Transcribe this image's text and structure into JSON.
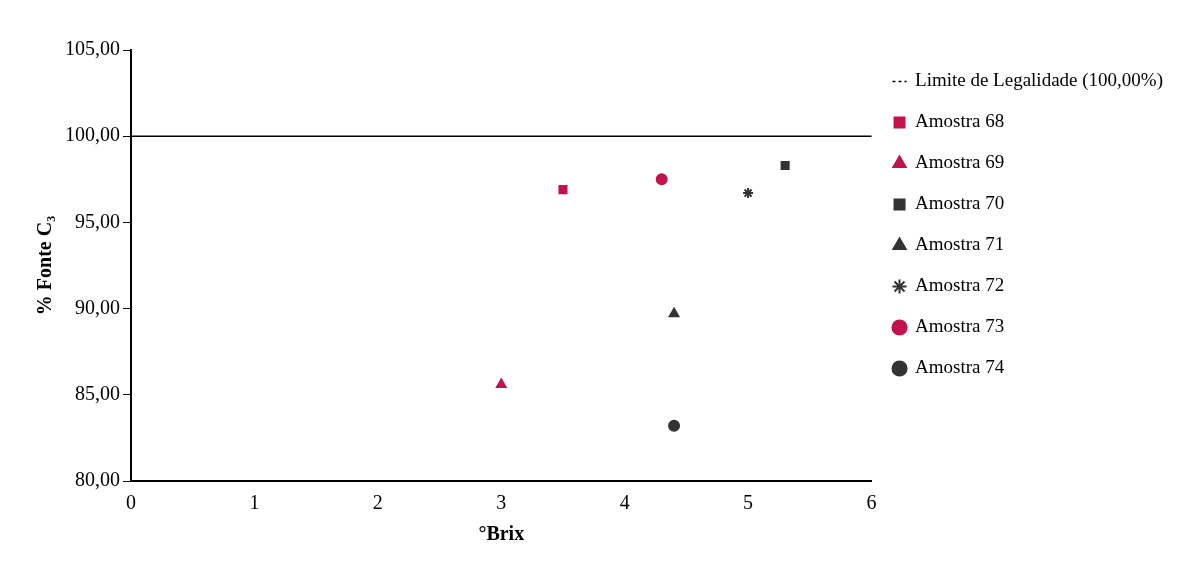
{
  "chart_data": {
    "type": "scatter",
    "xlabel": "°Brix",
    "ylabel": "% Fonte C₃",
    "xlim": [
      0,
      6
    ],
    "xticks": [
      0,
      1,
      2,
      3,
      4,
      5,
      6
    ],
    "ylim": [
      80,
      105
    ],
    "yticks": [
      {
        "value": 80,
        "label": "80,00"
      },
      {
        "value": 85,
        "label": "85,00"
      },
      {
        "value": 90,
        "label": "90,00"
      },
      {
        "value": 95,
        "label": "95,00"
      },
      {
        "value": 100,
        "label": "100,00"
      },
      {
        "value": 105,
        "label": "105,00"
      }
    ],
    "ref_lines": [
      {
        "axis": "y",
        "value": 100,
        "label": "Limite de Legalidade (100,00%)",
        "color": "#000000"
      }
    ],
    "series": [
      {
        "name": "Amostra 68",
        "color": "#c0134f",
        "marker": "square",
        "x": [
          3.5
        ],
        "values": [
          96.9
        ]
      },
      {
        "name": "Amostra 69",
        "color": "#c0134f",
        "marker": "triangle",
        "x": [
          3.0
        ],
        "values": [
          85.6
        ]
      },
      {
        "name": "Amostra 70",
        "color": "#333333",
        "marker": "square",
        "x": [
          5.3
        ],
        "values": [
          98.3
        ]
      },
      {
        "name": "Amostra 71",
        "color": "#333333",
        "marker": "triangle",
        "x": [
          4.4
        ],
        "values": [
          89.7
        ]
      },
      {
        "name": "Amostra 72",
        "color": "#333333",
        "marker": "cross",
        "x": [
          5.0
        ],
        "values": [
          96.7
        ]
      },
      {
        "name": "Amostra 73",
        "color": "#c0134f",
        "x": [
          4.3
        ],
        "values": [
          97.5
        ]
      },
      {
        "name": "Amostra 74",
        "color": "#333333",
        "marker": "circle",
        "x": [
          4.4
        ],
        "values": [
          83.2
        ]
      }
    ],
    "legend": "right",
    "grid": false
  }
}
